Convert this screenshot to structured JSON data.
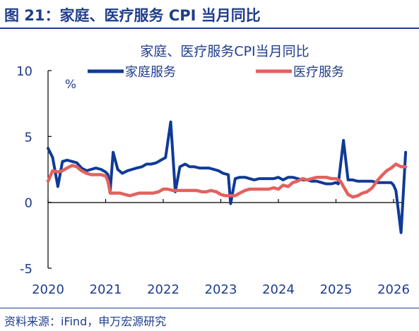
{
  "figure": {
    "title": "图 21：家庭、医疗服务 CPI 当月同比",
    "source": "资料来源：iFind，申万宏源研究"
  },
  "colors": {
    "navy": "#1f3d8c",
    "series_home": "#0f3a97",
    "series_medical": "#e2625e",
    "axis": "#000000"
  },
  "chart_data": {
    "type": "line",
    "title": "家庭、医疗服务CPI当月同比",
    "unit": "%",
    "xlabel": "",
    "ylabel": "",
    "x_ticks": [
      "2020",
      "2021",
      "2022",
      "2023",
      "2024",
      "2025",
      "2026"
    ],
    "y_ticks": [
      "10",
      "5",
      "0",
      "-5"
    ],
    "ylim": [
      -5,
      10
    ],
    "xlim": [
      2020.0,
      2026.25
    ],
    "grid": false,
    "legend": "top",
    "series": [
      {
        "name": "家庭服务",
        "color": "#0f3a97",
        "points": [
          [
            2020.0,
            4.1
          ],
          [
            2020.08,
            3.4
          ],
          [
            2020.17,
            1.2
          ],
          [
            2020.25,
            3.1
          ],
          [
            2020.33,
            3.2
          ],
          [
            2020.42,
            3.1
          ],
          [
            2020.5,
            3.0
          ],
          [
            2020.58,
            2.6
          ],
          [
            2020.67,
            2.4
          ],
          [
            2020.75,
            2.5
          ],
          [
            2020.83,
            2.6
          ],
          [
            2020.92,
            2.5
          ],
          [
            2021.0,
            2.3
          ],
          [
            2021.04,
            2.1
          ],
          [
            2021.08,
            0.9
          ],
          [
            2021.13,
            3.8
          ],
          [
            2021.21,
            2.5
          ],
          [
            2021.29,
            2.2
          ],
          [
            2021.38,
            2.4
          ],
          [
            2021.46,
            2.5
          ],
          [
            2021.54,
            2.6
          ],
          [
            2021.63,
            2.7
          ],
          [
            2021.71,
            2.9
          ],
          [
            2021.79,
            2.9
          ],
          [
            2021.88,
            3.0
          ],
          [
            2021.96,
            3.2
          ],
          [
            2022.04,
            3.4
          ],
          [
            2022.13,
            6.1
          ],
          [
            2022.21,
            0.8
          ],
          [
            2022.29,
            2.7
          ],
          [
            2022.38,
            2.9
          ],
          [
            2022.46,
            2.7
          ],
          [
            2022.54,
            2.7
          ],
          [
            2022.63,
            2.6
          ],
          [
            2022.71,
            2.6
          ],
          [
            2022.79,
            2.6
          ],
          [
            2022.88,
            2.5
          ],
          [
            2022.96,
            2.4
          ],
          [
            2023.04,
            2.2
          ],
          [
            2023.13,
            2.1
          ],
          [
            2023.17,
            -0.1
          ],
          [
            2023.25,
            1.8
          ],
          [
            2023.33,
            1.9
          ],
          [
            2023.42,
            1.9
          ],
          [
            2023.5,
            1.8
          ],
          [
            2023.58,
            1.7
          ],
          [
            2023.67,
            1.8
          ],
          [
            2023.75,
            1.8
          ],
          [
            2023.83,
            1.8
          ],
          [
            2023.92,
            1.8
          ],
          [
            2024.0,
            1.9
          ],
          [
            2024.08,
            1.7
          ],
          [
            2024.17,
            1.9
          ],
          [
            2024.25,
            1.9
          ],
          [
            2024.33,
            1.8
          ],
          [
            2024.42,
            1.7
          ],
          [
            2024.5,
            1.7
          ],
          [
            2024.58,
            1.6
          ],
          [
            2024.67,
            1.6
          ],
          [
            2024.75,
            1.5
          ],
          [
            2024.83,
            1.4
          ],
          [
            2024.92,
            1.4
          ],
          [
            2025.0,
            1.5
          ],
          [
            2025.04,
            1.4
          ],
          [
            2025.13,
            4.7
          ],
          [
            2025.21,
            1.7
          ],
          [
            2025.29,
            1.7
          ],
          [
            2025.38,
            1.6
          ],
          [
            2025.46,
            1.6
          ],
          [
            2025.54,
            1.6
          ],
          [
            2025.63,
            1.6
          ],
          [
            2025.71,
            1.5
          ],
          [
            2025.79,
            1.5
          ],
          [
            2025.88,
            1.5
          ],
          [
            2025.96,
            1.5
          ],
          [
            2026.0,
            1.3
          ],
          [
            2026.04,
            0.9
          ],
          [
            2026.08,
            -0.5
          ],
          [
            2026.13,
            -2.3
          ],
          [
            2026.21,
            3.8
          ]
        ]
      },
      {
        "name": "医疗服务",
        "color": "#e2625e",
        "points": [
          [
            2020.0,
            1.6
          ],
          [
            2020.08,
            2.4
          ],
          [
            2020.17,
            2.3
          ],
          [
            2020.25,
            2.4
          ],
          [
            2020.33,
            2.6
          ],
          [
            2020.42,
            2.8
          ],
          [
            2020.5,
            2.7
          ],
          [
            2020.58,
            2.4
          ],
          [
            2020.67,
            2.2
          ],
          [
            2020.75,
            2.1
          ],
          [
            2020.83,
            2.1
          ],
          [
            2020.92,
            2.1
          ],
          [
            2021.0,
            2.0
          ],
          [
            2021.04,
            1.6
          ],
          [
            2021.08,
            0.7
          ],
          [
            2021.17,
            0.7
          ],
          [
            2021.25,
            0.7
          ],
          [
            2021.33,
            0.6
          ],
          [
            2021.42,
            0.5
          ],
          [
            2021.5,
            0.6
          ],
          [
            2021.58,
            0.7
          ],
          [
            2021.67,
            0.7
          ],
          [
            2021.75,
            0.7
          ],
          [
            2021.83,
            0.7
          ],
          [
            2021.92,
            0.8
          ],
          [
            2022.0,
            1.0
          ],
          [
            2022.08,
            1.0
          ],
          [
            2022.17,
            0.9
          ],
          [
            2022.25,
            0.9
          ],
          [
            2022.33,
            0.9
          ],
          [
            2022.42,
            0.9
          ],
          [
            2022.5,
            0.9
          ],
          [
            2022.58,
            0.9
          ],
          [
            2022.67,
            0.8
          ],
          [
            2022.75,
            0.8
          ],
          [
            2022.83,
            0.9
          ],
          [
            2022.92,
            0.8
          ],
          [
            2023.0,
            0.6
          ],
          [
            2023.08,
            0.5
          ],
          [
            2023.17,
            0.5
          ],
          [
            2023.25,
            0.5
          ],
          [
            2023.33,
            0.7
          ],
          [
            2023.42,
            0.9
          ],
          [
            2023.5,
            1.0
          ],
          [
            2023.58,
            1.0
          ],
          [
            2023.67,
            1.0
          ],
          [
            2023.75,
            1.0
          ],
          [
            2023.83,
            1.0
          ],
          [
            2023.92,
            1.1
          ],
          [
            2024.0,
            1.0
          ],
          [
            2024.08,
            1.3
          ],
          [
            2024.17,
            1.2
          ],
          [
            2024.25,
            1.5
          ],
          [
            2024.33,
            1.6
          ],
          [
            2024.42,
            1.8
          ],
          [
            2024.5,
            1.7
          ],
          [
            2024.58,
            1.8
          ],
          [
            2024.67,
            1.9
          ],
          [
            2024.75,
            1.9
          ],
          [
            2024.83,
            1.9
          ],
          [
            2024.92,
            1.8
          ],
          [
            2025.0,
            1.8
          ],
          [
            2025.08,
            1.6
          ],
          [
            2025.13,
            1.2
          ],
          [
            2025.21,
            0.6
          ],
          [
            2025.29,
            0.4
          ],
          [
            2025.38,
            0.5
          ],
          [
            2025.46,
            0.7
          ],
          [
            2025.54,
            0.8
          ],
          [
            2025.63,
            1.1
          ],
          [
            2025.71,
            1.6
          ],
          [
            2025.79,
            2.0
          ],
          [
            2025.88,
            2.4
          ],
          [
            2025.96,
            2.6
          ],
          [
            2026.04,
            2.9
          ],
          [
            2026.13,
            2.7
          ],
          [
            2026.21,
            2.7
          ]
        ]
      }
    ]
  }
}
